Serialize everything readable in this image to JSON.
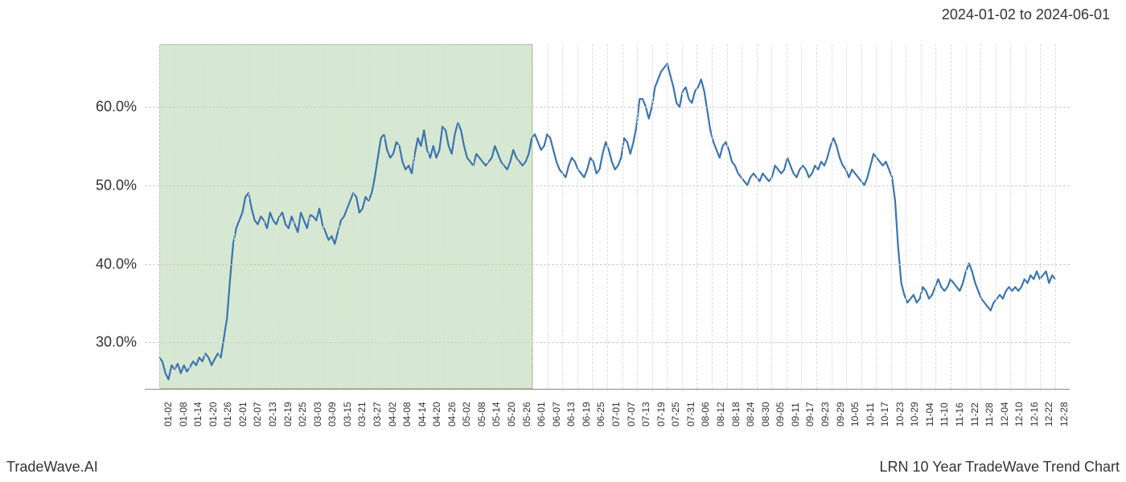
{
  "date_range_label": "2024-01-02 to 2024-06-01",
  "footer_left": "TradeWave.AI",
  "footer_right": "LRN 10 Year TradeWave Trend Chart",
  "chart": {
    "type": "line",
    "background_color": "#ffffff",
    "highlight_fill": "#d6e8d1",
    "highlight_border": "#a8c8a0",
    "line_color": "#3b74b0",
    "line_width": 2.2,
    "grid_color": "#cccccc",
    "vgrid_color": "#dddddd",
    "axis_color": "#888888",
    "ylim": [
      24,
      68
    ],
    "y_ticks": [
      30,
      40,
      50,
      60
    ],
    "y_tick_labels": [
      "30.0%",
      "40.0%",
      "50.0%",
      "60.0%"
    ],
    "tick_font_size": 12,
    "y_label_font_size": 18,
    "highlight_range": [
      "01-02",
      "06-01"
    ],
    "x_tick_labels": [
      "01-02",
      "01-08",
      "01-14",
      "01-20",
      "01-26",
      "02-01",
      "02-07",
      "02-13",
      "02-19",
      "02-25",
      "03-03",
      "03-09",
      "03-15",
      "03-21",
      "03-27",
      "04-02",
      "04-08",
      "04-14",
      "04-20",
      "04-26",
      "05-02",
      "05-08",
      "05-14",
      "05-20",
      "05-26",
      "06-01",
      "06-07",
      "06-13",
      "06-19",
      "06-25",
      "07-01",
      "07-07",
      "07-13",
      "07-19",
      "07-25",
      "07-31",
      "08-06",
      "08-12",
      "08-18",
      "08-24",
      "08-30",
      "09-05",
      "09-11",
      "09-17",
      "09-23",
      "09-29",
      "10-05",
      "10-11",
      "10-17",
      "10-23",
      "10-29",
      "11-04",
      "11-10",
      "11-16",
      "11-22",
      "11-28",
      "12-04",
      "12-10",
      "12-16",
      "12-22",
      "12-28"
    ],
    "series": [
      28.0,
      27.5,
      26.0,
      25.2,
      27.0,
      26.5,
      27.2,
      26.0,
      27.0,
      26.2,
      26.8,
      27.5,
      27.0,
      28.0,
      27.5,
      28.5,
      28.0,
      27.0,
      27.8,
      28.5,
      28.0,
      30.5,
      33.0,
      38.0,
      42.5,
      44.5,
      45.5,
      46.5,
      48.5,
      49.0,
      47.0,
      45.5,
      45.0,
      46.0,
      45.5,
      44.5,
      46.5,
      45.5,
      45.0,
      46.0,
      46.5,
      45.0,
      44.5,
      46.0,
      45.0,
      44.0,
      46.5,
      45.5,
      44.5,
      46.2,
      46.0,
      45.5,
      47.0,
      45.0,
      44.0,
      43.0,
      43.5,
      42.5,
      44.0,
      45.5,
      46.0,
      47.0,
      48.0,
      49.0,
      48.5,
      46.5,
      47.0,
      48.5,
      48.0,
      49.0,
      51.0,
      53.5,
      56.0,
      56.5,
      54.5,
      53.5,
      54.0,
      55.5,
      55.0,
      53.0,
      52.0,
      52.5,
      51.5,
      54.0,
      56.0,
      55.0,
      57.0,
      54.5,
      53.5,
      55.0,
      53.5,
      54.5,
      57.5,
      57.0,
      55.0,
      54.0,
      56.5,
      58.0,
      57.0,
      55.0,
      53.5,
      53.0,
      52.5,
      54.0,
      53.5,
      53.0,
      52.5,
      53.0,
      53.5,
      55.0,
      54.0,
      53.0,
      52.5,
      52.0,
      53.0,
      54.5,
      53.5,
      53.0,
      52.5,
      53.0,
      54.0,
      56.0,
      56.5,
      55.5,
      54.5,
      55.0,
      56.5,
      56.0,
      54.5,
      53.0,
      52.0,
      51.5,
      51.0,
      52.5,
      53.5,
      53.0,
      52.0,
      51.5,
      51.0,
      52.0,
      53.5,
      53.0,
      51.5,
      52.0,
      54.0,
      55.5,
      54.5,
      53.0,
      52.0,
      52.5,
      53.5,
      56.0,
      55.5,
      54.0,
      55.5,
      57.5,
      61.0,
      61.0,
      60.0,
      58.5,
      60.0,
      62.5,
      63.5,
      64.5,
      65.0,
      65.5,
      64.0,
      62.5,
      60.5,
      60.0,
      62.0,
      62.5,
      61.0,
      60.5,
      62.0,
      62.5,
      63.5,
      62.0,
      59.5,
      57.0,
      55.5,
      54.5,
      53.5,
      55.0,
      55.5,
      54.5,
      53.0,
      52.5,
      51.5,
      51.0,
      50.5,
      50.0,
      51.0,
      51.5,
      51.0,
      50.5,
      51.5,
      51.0,
      50.5,
      51.0,
      52.5,
      52.0,
      51.5,
      52.0,
      53.5,
      52.5,
      51.5,
      51.0,
      52.0,
      52.5,
      52.0,
      51.0,
      51.5,
      52.5,
      52.0,
      53.0,
      52.5,
      53.5,
      55.0,
      56.0,
      55.0,
      53.5,
      52.5,
      52.0,
      51.0,
      52.0,
      51.5,
      51.0,
      50.5,
      50.0,
      51.0,
      52.5,
      54.0,
      53.5,
      53.0,
      52.5,
      53.0,
      52.0,
      51.0,
      48.0,
      42.0,
      37.5,
      36.0,
      35.0,
      35.5,
      36.0,
      35.0,
      35.5,
      37.0,
      36.5,
      35.5,
      36.0,
      37.0,
      38.0,
      37.0,
      36.5,
      37.0,
      38.0,
      37.5,
      37.0,
      36.5,
      37.5,
      39.0,
      40.0,
      39.0,
      37.5,
      36.5,
      35.5,
      35.0,
      34.5,
      34.0,
      35.0,
      35.5,
      36.0,
      35.5,
      36.5,
      37.0,
      36.5,
      37.0,
      36.5,
      37.0,
      38.0,
      37.5,
      38.5,
      38.0,
      39.0,
      38.0,
      38.5,
      39.0,
      37.5,
      38.5,
      38.0
    ]
  }
}
